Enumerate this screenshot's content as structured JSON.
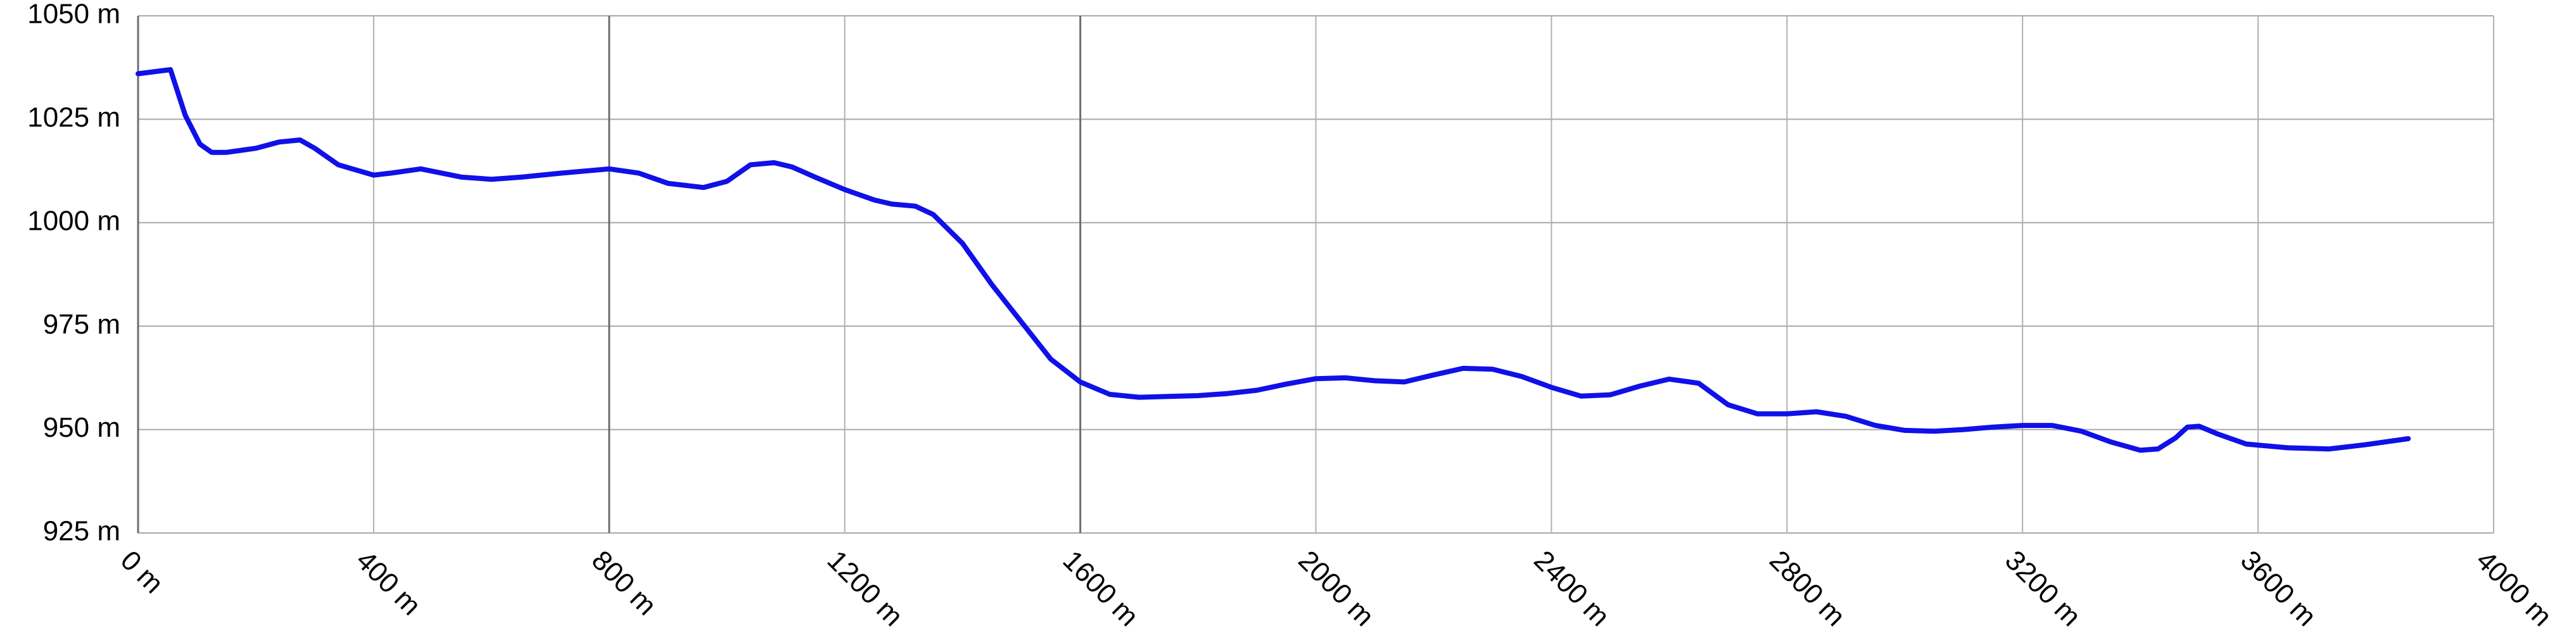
{
  "chart_data": {
    "type": "line",
    "title": "",
    "xlabel": "",
    "ylabel": "",
    "xlim": [
      0,
      4000
    ],
    "ylim": [
      925,
      1050
    ],
    "grid": true,
    "legend": "none",
    "x_ticks": [
      0,
      400,
      800,
      1200,
      1600,
      2000,
      2400,
      2800,
      3200,
      3600,
      4000
    ],
    "x_tick_labels": [
      "0 m",
      "400 m",
      "800 m",
      "1200 m",
      "1600 m",
      "2000 m",
      "2400 m",
      "2800 m",
      "3200 m",
      "3600 m",
      "4000 m"
    ],
    "y_ticks": [
      925,
      950,
      975,
      1000,
      1025,
      1050
    ],
    "y_tick_labels": [
      "925 m",
      "950 m",
      "975 m",
      "1000 m",
      "1025 m",
      "1050 m"
    ],
    "series": [
      {
        "color": "#1010e8",
        "x": [
          0,
          55,
          80,
          105,
          125,
          150,
          200,
          240,
          275,
          300,
          340,
          400,
          430,
          480,
          550,
          600,
          650,
          720,
          800,
          850,
          900,
          960,
          1000,
          1040,
          1080,
          1110,
          1150,
          1200,
          1250,
          1280,
          1320,
          1350,
          1400,
          1450,
          1500,
          1550,
          1600,
          1650,
          1700,
          1750,
          1800,
          1850,
          1900,
          1950,
          2000,
          2050,
          2100,
          2150,
          2200,
          2250,
          2300,
          2350,
          2400,
          2450,
          2500,
          2550,
          2600,
          2650,
          2700,
          2750,
          2800,
          2850,
          2900,
          2950,
          3000,
          3050,
          3100,
          3150,
          3200,
          3250,
          3300,
          3350,
          3400,
          3430,
          3460,
          3480,
          3500,
          3530,
          3580,
          3650,
          3720,
          3780,
          3855
        ],
        "y": [
          1036,
          1037,
          1026,
          1019,
          1017,
          1017,
          1018,
          1019.5,
          1020,
          1018,
          1014,
          1011.5,
          1012,
          1013,
          1011,
          1010.5,
          1011,
          1012,
          1013,
          1012,
          1009.5,
          1008.5,
          1010,
          1014,
          1014.5,
          1013.5,
          1011,
          1008,
          1005.5,
          1004.5,
          1004,
          1002,
          995,
          985,
          976,
          967,
          961.5,
          958.5,
          957.8,
          958,
          958.2,
          958.7,
          959.5,
          961,
          962.3,
          962.5,
          961.8,
          961.5,
          963.2,
          964.8,
          964.6,
          962.8,
          960.2,
          958.1,
          958.4,
          960.5,
          962.2,
          961.2,
          956,
          953.8,
          953.8,
          954.3,
          953.2,
          951,
          949.8,
          949.6,
          950,
          950.6,
          951,
          951,
          949.6,
          947,
          945,
          945.3,
          948,
          950.6,
          950.8,
          949,
          946.5,
          945.6,
          945.3,
          946.3,
          947.8
        ]
      }
    ]
  }
}
